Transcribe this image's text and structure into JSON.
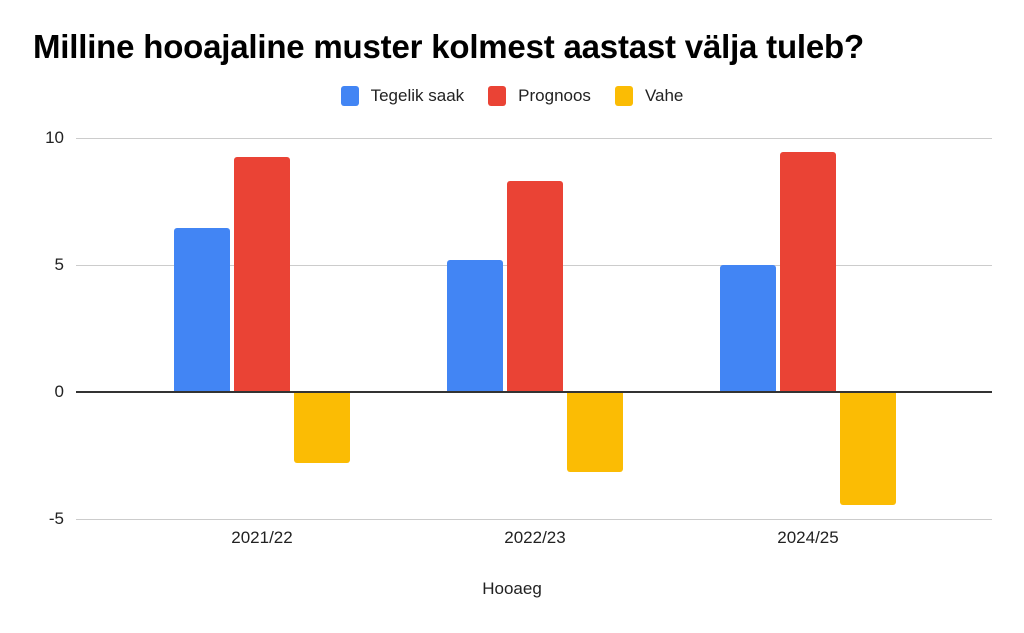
{
  "chart_data": {
    "type": "bar",
    "title": "Milline hooajaline muster kolmest aastast välja tuleb?",
    "xlabel": "Hooaeg",
    "ylabel": "",
    "categories": [
      "2021/22",
      "2022/23",
      "2024/25"
    ],
    "series": [
      {
        "name": "Tegelik saak",
        "color": "#4285F4",
        "values": [
          6.45,
          5.2,
          5.0
        ]
      },
      {
        "name": "Prognoos",
        "color": "#EA4335",
        "values": [
          9.25,
          8.3,
          9.45
        ]
      },
      {
        "name": "Vahe",
        "color": "#FBBC04",
        "values": [
          -2.8,
          -3.15,
          -4.45
        ]
      }
    ],
    "ylim": [
      -5,
      10
    ],
    "yticks": [
      10,
      5,
      0,
      -5
    ],
    "grid": true,
    "legend_position": "top"
  },
  "ytick_labels": [
    "10",
    "5",
    "0",
    "-5"
  ],
  "legend": [
    {
      "label": "Tegelik saak",
      "color": "#4285F4"
    },
    {
      "label": "Prognoos",
      "color": "#EA4335"
    },
    {
      "label": "Vahe",
      "color": "#FBBC04"
    }
  ]
}
